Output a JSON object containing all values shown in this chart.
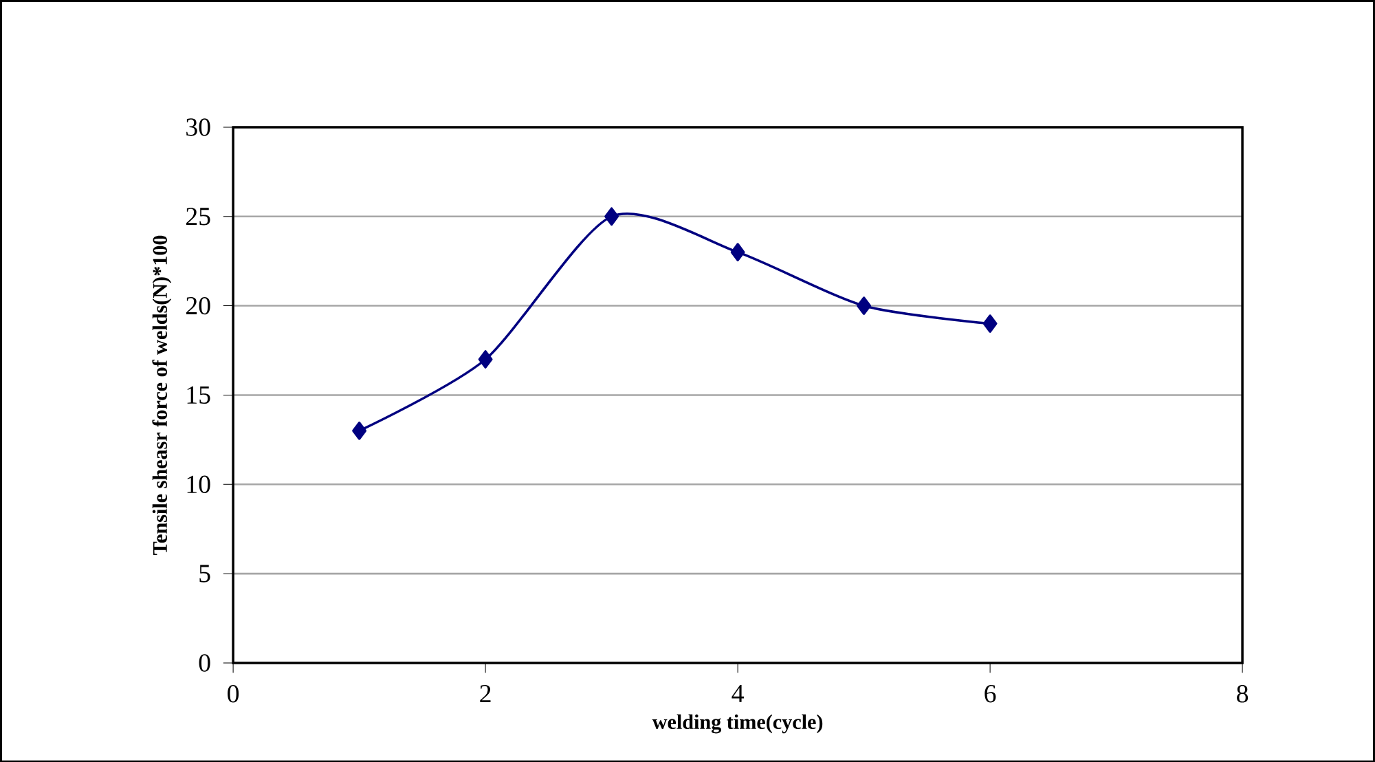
{
  "chart_data": {
    "type": "line",
    "xlabel": "welding time(cycle)",
    "ylabel": "Tensile sheasr force of welds(N)*100",
    "x": [
      1,
      2,
      3,
      4,
      5,
      6
    ],
    "series": [
      {
        "color": "#000080",
        "values": [
          13,
          17,
          25,
          23,
          20,
          19
        ]
      }
    ],
    "xlim": [
      0,
      8
    ],
    "ylim": [
      0,
      30
    ],
    "xticks": [
      0,
      2,
      4,
      6,
      8
    ],
    "yticks": [
      0,
      5,
      10,
      15,
      20,
      25,
      30
    ],
    "grid": "y",
    "marker": "diamond",
    "line_style": "solid"
  }
}
